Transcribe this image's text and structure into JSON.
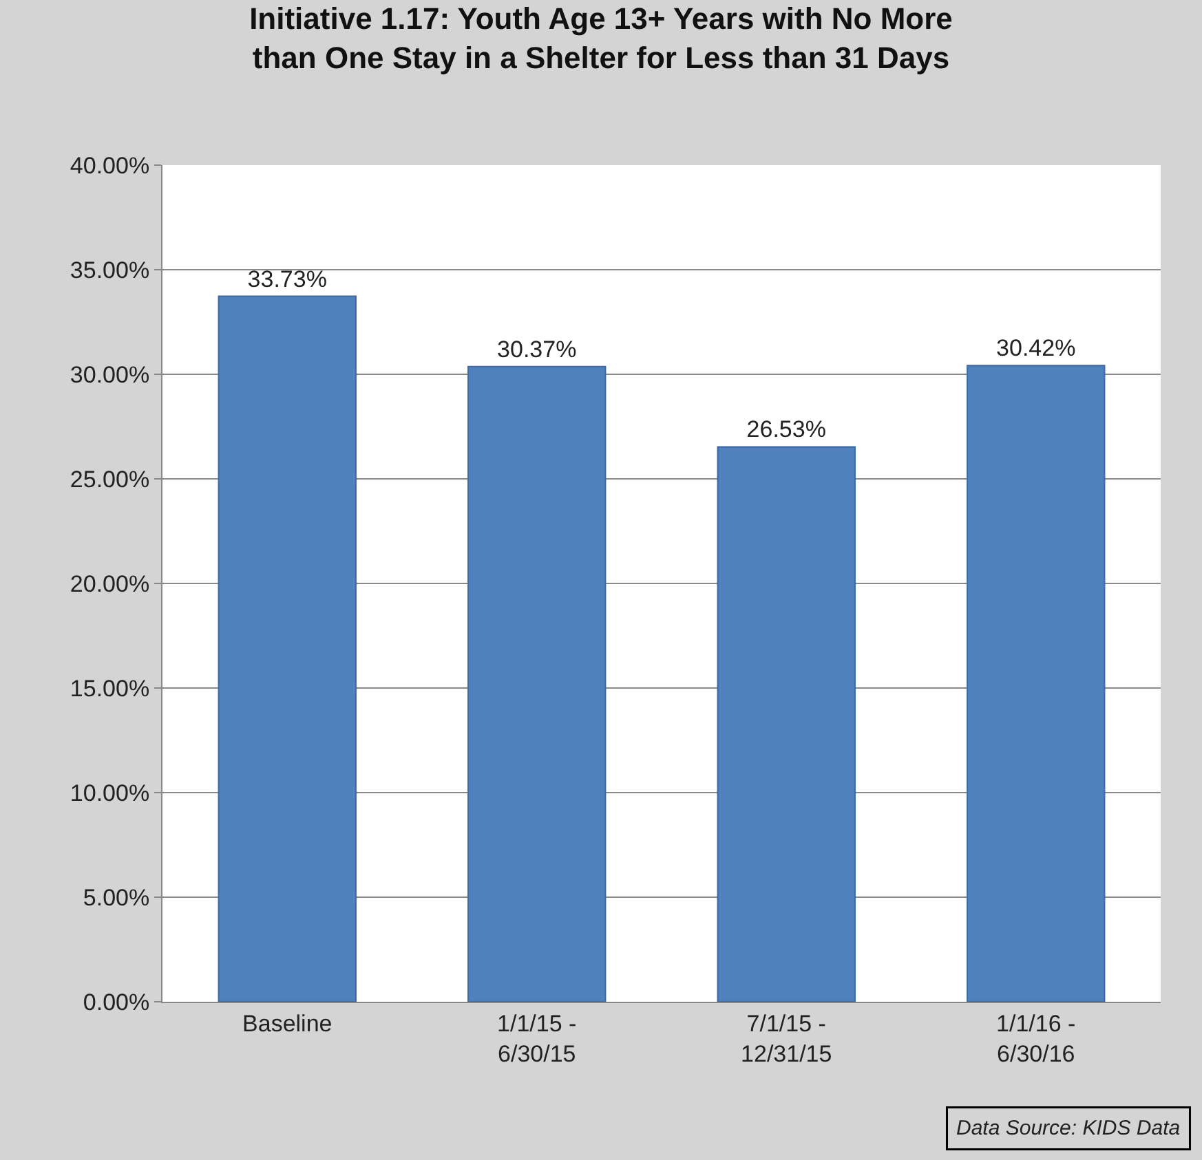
{
  "chart_data": {
    "type": "bar",
    "title": "Initiative 1.17: Youth Age 13+ Years with No More than One Stay in a Shelter for Less than 31 Days",
    "categories": [
      "Baseline",
      "1/1/15 - 6/30/15",
      "7/1/15 - 12/31/15",
      "1/1/16 - 6/30/16"
    ],
    "values": [
      33.73,
      30.37,
      26.53,
      30.42
    ],
    "value_labels": [
      "33.73%",
      "30.37%",
      "26.53%",
      "30.42%"
    ],
    "color": "#4f81bd",
    "ylim": [
      0,
      40
    ],
    "yticks": [
      {
        "value": 0,
        "label": "0.00%"
      },
      {
        "value": 5,
        "label": "5.00%"
      },
      {
        "value": 10,
        "label": "10.00%"
      },
      {
        "value": 15,
        "label": "15.00%"
      },
      {
        "value": 20,
        "label": "20.00%"
      },
      {
        "value": 25,
        "label": "25.00%"
      },
      {
        "value": 30,
        "label": "30.00%"
      },
      {
        "value": 35,
        "label": "35.00%"
      },
      {
        "value": 40,
        "label": "40.00%"
      }
    ],
    "grid": "y",
    "annotations": [
      "Data Source: KIDS Data"
    ]
  }
}
